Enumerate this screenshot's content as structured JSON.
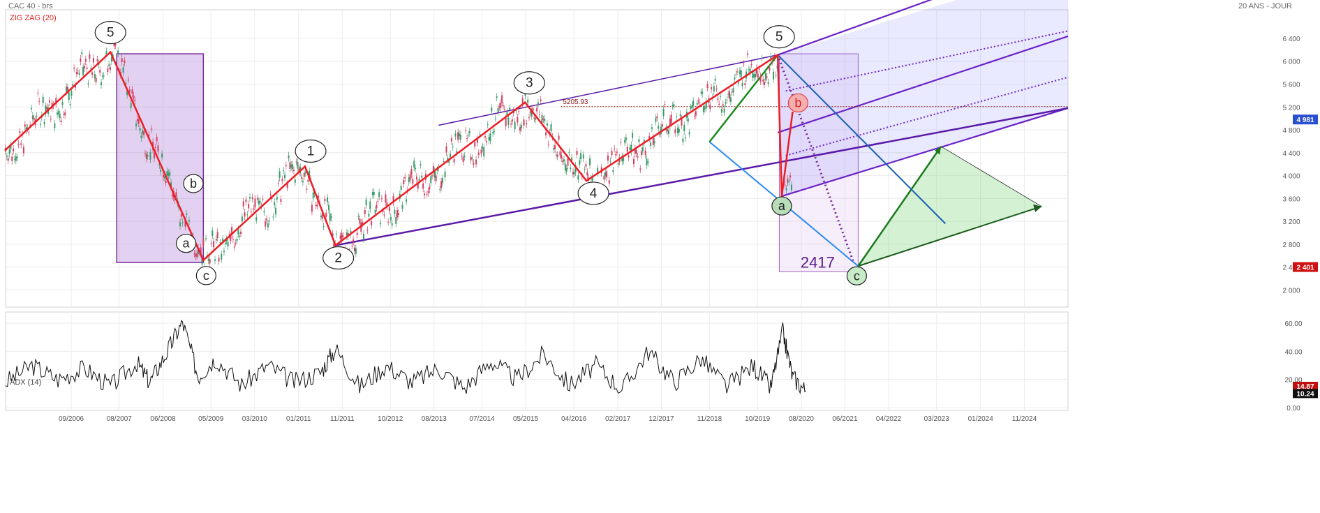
{
  "header": {
    "title_left": "CAC 40 - brs",
    "title_right": "20 ANS - JOUR",
    "indicator_label": "ZIG ZAG (20)",
    "adx_label": "ADX (14)",
    "level_label": "5205.93",
    "target_label": "2417"
  },
  "chart_data": [
    {
      "type": "line",
      "title": "CAC 40 - brs",
      "series": [
        {
          "name": "ZIG ZAG (20)",
          "x": [
            "2005-06-01",
            "2007-06-01",
            "2009-03-09",
            "2011-02-15",
            "2011-09-15",
            "2015-04-27",
            "2016-06-27",
            "2020-02-19",
            "2020-03-18"
          ],
          "values": [
            4450,
            6160,
            2520,
            4160,
            2780,
            5280,
            3910,
            6110,
            3640
          ]
        },
        {
          "name": "",
          "x": [
            "2020-03-18",
            "2020-06-01"
          ],
          "values": [
            3640,
            5100
          ]
        }
      ],
      "x_ticks": [
        "09/2006",
        "08/2007",
        "06/2008",
        "05/2009",
        "03/2010",
        "01/2011",
        "11/2011",
        "10/2012",
        "08/2013",
        "07/2014",
        "05/2015",
        "04/2016",
        "02/2017",
        "12/2017",
        "11/2018",
        "10/2019",
        "08/2020",
        "06/2021",
        "04/2022",
        "03/2023",
        "01/2024",
        "11/2024"
      ],
      "y_ticks": [
        2000,
        2400,
        2800,
        3200,
        3600,
        4000,
        4400,
        4800,
        5200,
        5600,
        6000,
        6400
      ],
      "ylim": [
        1700,
        6900
      ],
      "xlim": [
        "2005-06-01",
        "2025-09-01"
      ],
      "last_value": "4 981",
      "target_value": "2 401",
      "level": 5205.93,
      "wave_labels": [
        {
          "text": "5",
          "x": "2007-06-01",
          "y": 6160
        },
        {
          "text": "b",
          "x": "2008-11-01",
          "y": 3690
        },
        {
          "text": "a",
          "x": "2008-10-20",
          "y": 3010
        },
        {
          "text": "c",
          "x": "2009-03-09",
          "y": 2520
        },
        {
          "text": "1",
          "x": "2011-02-15",
          "y": 4160
        },
        {
          "text": "2",
          "x": "2011-09-15",
          "y": 2780
        },
        {
          "text": "3",
          "x": "2015-04-27",
          "y": 5280
        },
        {
          "text": "4",
          "x": "2016-06-27",
          "y": 3910
        },
        {
          "text": "5",
          "x": "2020-02-19",
          "y": 6110
        },
        {
          "text": "b",
          "x": "2020-06-01",
          "y": 5100
        },
        {
          "text": "a",
          "x": "2020-03-18",
          "y": 3640
        },
        {
          "text": "c",
          "x": "2021-09-01",
          "y": 2417
        }
      ],
      "grid": true,
      "legend": "top-left"
    },
    {
      "type": "line",
      "title": "ADX (14)",
      "y_ticks": [
        0,
        20,
        40,
        60
      ],
      "ylim": [
        -2,
        68
      ],
      "series": [
        {
          "name": "ADX (14)",
          "x": [
            "2005-06-01",
            "2005-12-01",
            "2006-06-01",
            "2006-12-01",
            "2007-06-01",
            "2007-12-01",
            "2008-03-01",
            "2008-07-01",
            "2008-10-15",
            "2009-02-01",
            "2009-06-01",
            "2009-12-01",
            "2010-06-01",
            "2010-12-01",
            "2011-06-01",
            "2011-09-15",
            "2012-03-01",
            "2012-09-01",
            "2013-03-01",
            "2013-09-01",
            "2014-03-01",
            "2014-09-01",
            "2015-03-01",
            "2015-09-01",
            "2016-03-01",
            "2016-09-01",
            "2017-03-01",
            "2017-09-01",
            "2018-03-01",
            "2018-09-01",
            "2019-03-01",
            "2019-09-01",
            "2020-01-01",
            "2020-03-25",
            "2020-06-01",
            "2020-09-01"
          ],
          "values": [
            18,
            30,
            20,
            28,
            15,
            32,
            18,
            40,
            61,
            22,
            35,
            16,
            30,
            18,
            25,
            42,
            15,
            30,
            18,
            28,
            14,
            33,
            20,
            38,
            16,
            30,
            13,
            40,
            18,
            35,
            15,
            30,
            14,
            54,
            22,
            12
          ]
        }
      ],
      "last_values": [
        "14.87",
        "10.24"
      ]
    }
  ]
}
